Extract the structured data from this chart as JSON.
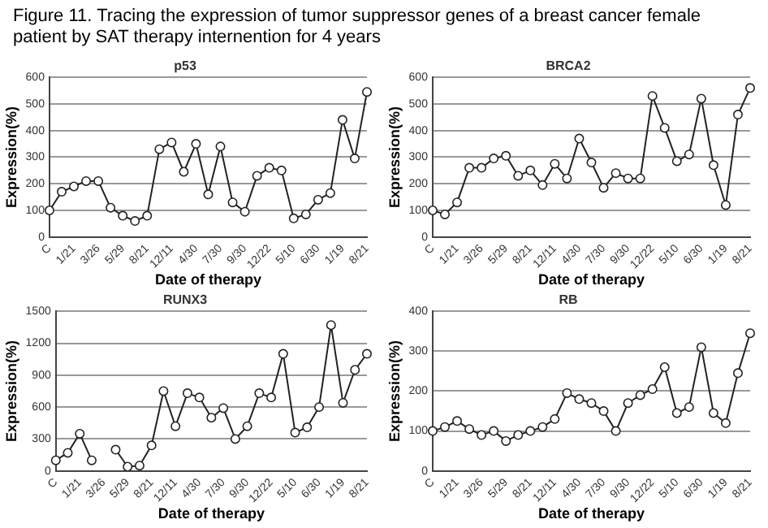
{
  "chart_data": [
    {
      "type": "line",
      "title": "p53",
      "annotations": [
        "Figure 11. Tracing the expression of tumor suppressor genes of a breast cancer female patient by SAT therapy internention for 4 years"
      ],
      "xlabel": "Date of therapy",
      "ylabel": "Expression(%)",
      "categories": [
        "C",
        null,
        "1/21",
        null,
        "3/26",
        null,
        "5/29",
        null,
        "8/21",
        null,
        "12/11",
        null,
        "4/30",
        null,
        "7/30",
        null,
        "9/30",
        null,
        "12/22",
        null,
        "5/10",
        null,
        "6/30",
        null,
        "1/19",
        null,
        "8/21"
      ],
      "series": [
        {
          "color": "#222222",
          "values": [
            100,
            170,
            190,
            210,
            210,
            110,
            80,
            60,
            80,
            330,
            355,
            245,
            350,
            160,
            340,
            130,
            95,
            230,
            260,
            250,
            70,
            85,
            140,
            165,
            440,
            295,
            545
          ]
        }
      ],
      "ylim": [
        0,
        600
      ],
      "yticks": [
        0,
        100,
        200,
        300,
        400,
        500,
        600
      ],
      "grid": "y",
      "marker": "circle",
      "line_style": "solid",
      "legend": false
    },
    {
      "type": "line",
      "title": "BRCA2",
      "xlabel": "Date of therapy",
      "ylabel": "Expression(%)",
      "categories": [
        "C",
        null,
        "1/21",
        null,
        "3/26",
        null,
        "5/29",
        null,
        "8/21",
        null,
        "12/11",
        null,
        "4/30",
        null,
        "7/30",
        null,
        "9/30",
        null,
        "12/22",
        null,
        "5/10",
        null,
        "6/30",
        null,
        "1/19",
        null,
        "8/21"
      ],
      "series": [
        {
          "color": "#222222",
          "values": [
            100,
            85,
            130,
            260,
            260,
            295,
            305,
            230,
            250,
            195,
            275,
            220,
            370,
            280,
            185,
            240,
            220,
            220,
            530,
            410,
            285,
            310,
            520,
            270,
            120,
            460,
            560
          ]
        }
      ],
      "ylim": [
        0,
        600
      ],
      "yticks": [
        0,
        100,
        200,
        300,
        400,
        500,
        600
      ],
      "grid": "y",
      "marker": "circle",
      "line_style": "solid",
      "legend": false
    },
    {
      "type": "line",
      "title": "RUNX3",
      "xlabel": "Date of therapy",
      "ylabel": "Expression(%)",
      "categories": [
        "C",
        null,
        "1/21",
        null,
        "3/26",
        null,
        "5/29",
        null,
        "8/21",
        null,
        "12/11",
        null,
        "4/30",
        null,
        "7/30",
        null,
        "9/30",
        null,
        "12/22",
        null,
        "5/10",
        null,
        "6/30",
        null,
        "1/19",
        null,
        "8/21"
      ],
      "series": [
        {
          "color": "#222222",
          "values": [
            100,
            170,
            350,
            100,
            null,
            200,
            40,
            50,
            240,
            750,
            420,
            730,
            690,
            500,
            590,
            300,
            420,
            730,
            690,
            1100,
            360,
            410,
            600,
            1370,
            640,
            950,
            1100
          ]
        }
      ],
      "ylim": [
        0,
        1500
      ],
      "yticks": [
        0,
        300,
        600,
        900,
        1200,
        1500
      ],
      "grid": "y",
      "marker": "circle",
      "line_style": "solid",
      "legend": false
    },
    {
      "type": "line",
      "title": "RB",
      "xlabel": "Date of therapy",
      "ylabel": "Expression(%)",
      "categories": [
        "C",
        null,
        "1/21",
        null,
        "3/26",
        null,
        "5/29",
        null,
        "8/21",
        null,
        "12/11",
        null,
        "4/30",
        null,
        "7/30",
        null,
        "9/30",
        null,
        "12/22",
        null,
        "5/10",
        null,
        "6/30",
        null,
        "1/19",
        null,
        "8/21"
      ],
      "series": [
        {
          "color": "#222222",
          "values": [
            100,
            110,
            125,
            105,
            90,
            100,
            75,
            90,
            100,
            110,
            130,
            195,
            180,
            170,
            150,
            100,
            170,
            190,
            205,
            260,
            145,
            160,
            310,
            145,
            120,
            245,
            345
          ]
        }
      ],
      "ylim": [
        0,
        400
      ],
      "yticks": [
        0,
        100,
        200,
        300,
        400
      ],
      "grid": "y",
      "marker": "circle",
      "line_style": "solid",
      "legend": false
    }
  ]
}
